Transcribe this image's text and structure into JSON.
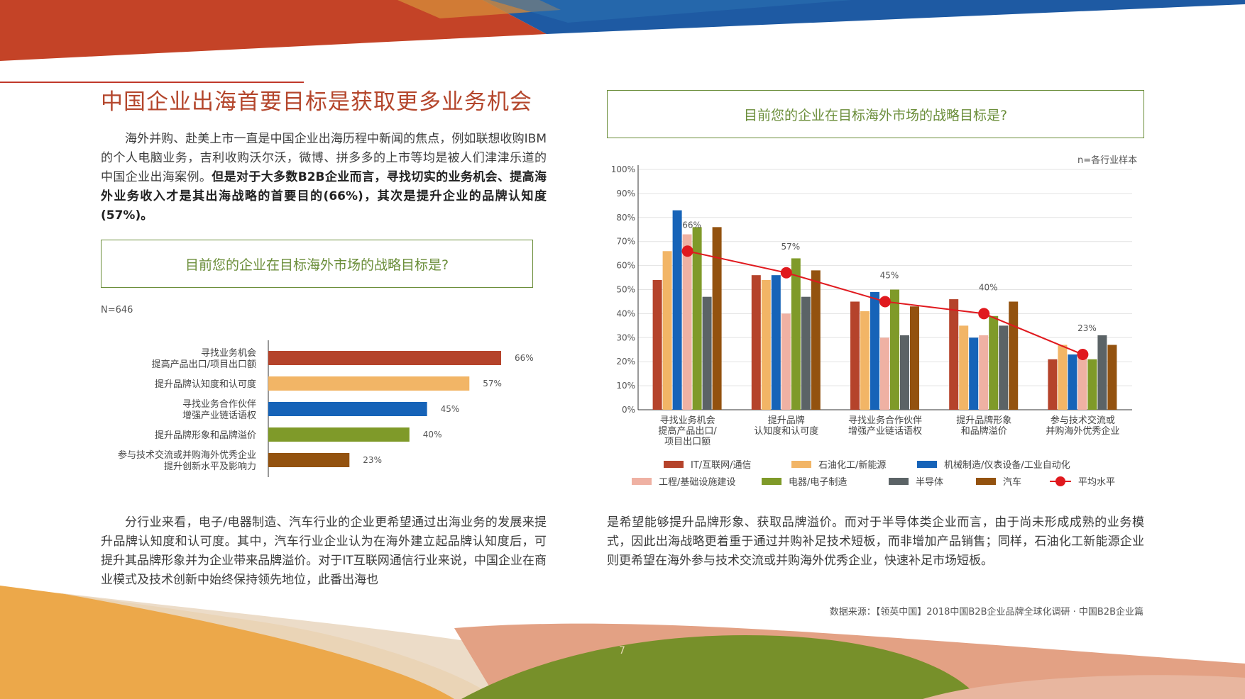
{
  "page": {
    "title": "中国企业出海首要目标是获取更多业务机会",
    "intro": {
      "plain": "海外并购、赴美上市一直是中国企业出海历程中新闻的焦点，例如联想收购IBM的个人电脑业务，吉利收购沃尔沃，微博、拼多多的上市等均是被人们津津乐道的中国企业出海案例。",
      "bold": "但是对于大多数B2B企业而言，寻找切实的业务机会、提高海外业务收入才是其出海战略的首要目的(66%)，其次是提升企业的品牌认知度(57%)。"
    },
    "para_left": "分行业来看，电子/电器制造、汽车行业的企业更希望通过出海业务的发展来提升品牌认知度和认可度。其中，汽车行业企业认为在海外建立起品牌认知度后，可提升其品牌形象并为企业带来品牌溢价。对于IT互联网通信行业来说，中国企业在商业模式及技术创新中始终保持领先地位，此番出海也",
    "para_right": "是希望能够提升品牌形象、获取品牌溢价。而对于半导体类企业而言，由于尚未形成成熟的业务模式，因此出海战略更着重于通过并购补足技术短板，而非增加产品销售；同样，石油化工新能源企业则更希望在海外参与技术交流或并购海外优秀企业，快速补足市场短板。",
    "question_left": "目前您的企业在目标海外市场的战略目标是?",
    "question_right": "目前您的企业在目标海外市场的战略目标是?",
    "sample_left": "N=646",
    "sample_right": "n=各行业样本",
    "source": "数据来源：【领英中国】2018中国B2B企业品牌全球化调研 · 中国B2B企业篇",
    "page_number": "7"
  },
  "chart_data": [
    {
      "type": "bar",
      "orientation": "horizontal",
      "categories": [
        [
          "寻找业务机会",
          "提高产品出口/项目出口额"
        ],
        [
          "提升品牌认知度和认可度"
        ],
        [
          "寻找业务合作伙伴",
          "增强产业链话语权"
        ],
        [
          "提升品牌形象和品牌溢价"
        ],
        [
          "参与技术交流或并购海外优秀企业",
          "提升创新水平及影响力"
        ]
      ],
      "values": [
        66,
        57,
        45,
        40,
        23
      ],
      "value_labels": [
        "66%",
        "57%",
        "45%",
        "40%",
        "23%"
      ],
      "colors": [
        "#b5432b",
        "#f2b566",
        "#1663b8",
        "#7f9a29",
        "#93520f"
      ],
      "xlim": [
        0,
        100
      ]
    },
    {
      "type": "bar",
      "categories": [
        [
          "寻找业务机会",
          "提高产品出口/",
          "项目出口额"
        ],
        [
          "提升品牌",
          "认知度和认可度"
        ],
        [
          "寻找业务合作伙伴",
          "增强产业链话语权"
        ],
        [
          "提升品牌形象",
          "和品牌溢价"
        ],
        [
          "参与技术交流或",
          "并购海外优秀企业"
        ]
      ],
      "series": [
        {
          "name": "IT/互联网/通信",
          "color": "#b5432b",
          "values": [
            54,
            56,
            45,
            46,
            21
          ]
        },
        {
          "name": "石油化工/新能源",
          "color": "#f2b566",
          "values": [
            66,
            54,
            41,
            35,
            27
          ]
        },
        {
          "name": "机械制造/仪表设备/工业自动化",
          "color": "#1663b8",
          "values": [
            83,
            56,
            49,
            30,
            23
          ]
        },
        {
          "name": "工程/基础设施建设",
          "color": "#efb1a3",
          "values": [
            73,
            40,
            30,
            31,
            24
          ]
        },
        {
          "name": "电器/电子制造",
          "color": "#7f9a29",
          "values": [
            76,
            63,
            50,
            39,
            21
          ]
        },
        {
          "name": "半导体",
          "color": "#5b6366",
          "values": [
            47,
            47,
            31,
            35,
            31
          ]
        },
        {
          "name": "汽车",
          "color": "#93520f",
          "values": [
            76,
            58,
            43,
            45,
            27
          ]
        }
      ],
      "line": {
        "name": "平均水平",
        "color": "#e0191e",
        "values": [
          66,
          57,
          45,
          40,
          23
        ],
        "labels": [
          "66%",
          "57%",
          "45%",
          "40%",
          "23%"
        ]
      },
      "ylim": [
        0,
        100
      ],
      "yticks": [
        "0%",
        "10%",
        "20%",
        "30%",
        "40%",
        "50%",
        "60%",
        "70%",
        "80%",
        "90%",
        "100%"
      ],
      "grid": true,
      "legend": "bottom"
    }
  ]
}
